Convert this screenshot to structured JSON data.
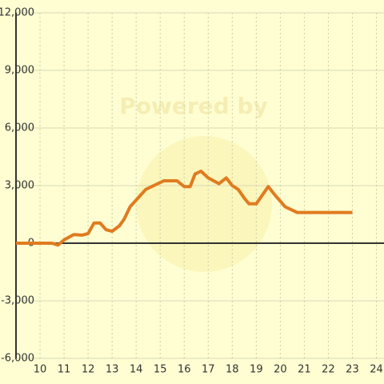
{
  "chart_data": {
    "type": "line",
    "watermark": "Powered by",
    "x": [
      9,
      10.5,
      10.75,
      11,
      11.4,
      11.75,
      12,
      12.25,
      12.5,
      12.75,
      13,
      13.3,
      13.5,
      13.75,
      14.4,
      15.15,
      15.7,
      16,
      16.25,
      16.45,
      16.7,
      17,
      17.45,
      17.75,
      18,
      18.25,
      18.5,
      18.7,
      19,
      19.5,
      19.75,
      20.2,
      20.7,
      23
    ],
    "values": [
      0,
      0,
      -100,
      170,
      450,
      420,
      500,
      1050,
      1050,
      700,
      620,
      900,
      1250,
      1900,
      2800,
      3250,
      3250,
      2950,
      2950,
      3600,
      3750,
      3400,
      3100,
      3400,
      3000,
      2800,
      2350,
      2050,
      2050,
      2950,
      2550,
      1900,
      1600,
      1600
    ],
    "color": "#e07b20",
    "xlim": [
      9,
      24.3
    ],
    "xticks": [
      10,
      11,
      12,
      13,
      14,
      15,
      16,
      17,
      18,
      19,
      20,
      21,
      22,
      23,
      24
    ],
    "ylim": [
      -6000,
      12000
    ],
    "yticks": [
      {
        "value": -6000,
        "label": "-6,000"
      },
      {
        "value": -3000,
        "label": "-3,000"
      },
      0,
      {
        "value": 3000,
        "label": "3,000"
      },
      {
        "value": 6000,
        "label": "6,000"
      },
      {
        "value": 9000,
        "label": "9,000"
      },
      {
        "value": 12000,
        "label": "12,000"
      }
    ],
    "grid": true
  }
}
